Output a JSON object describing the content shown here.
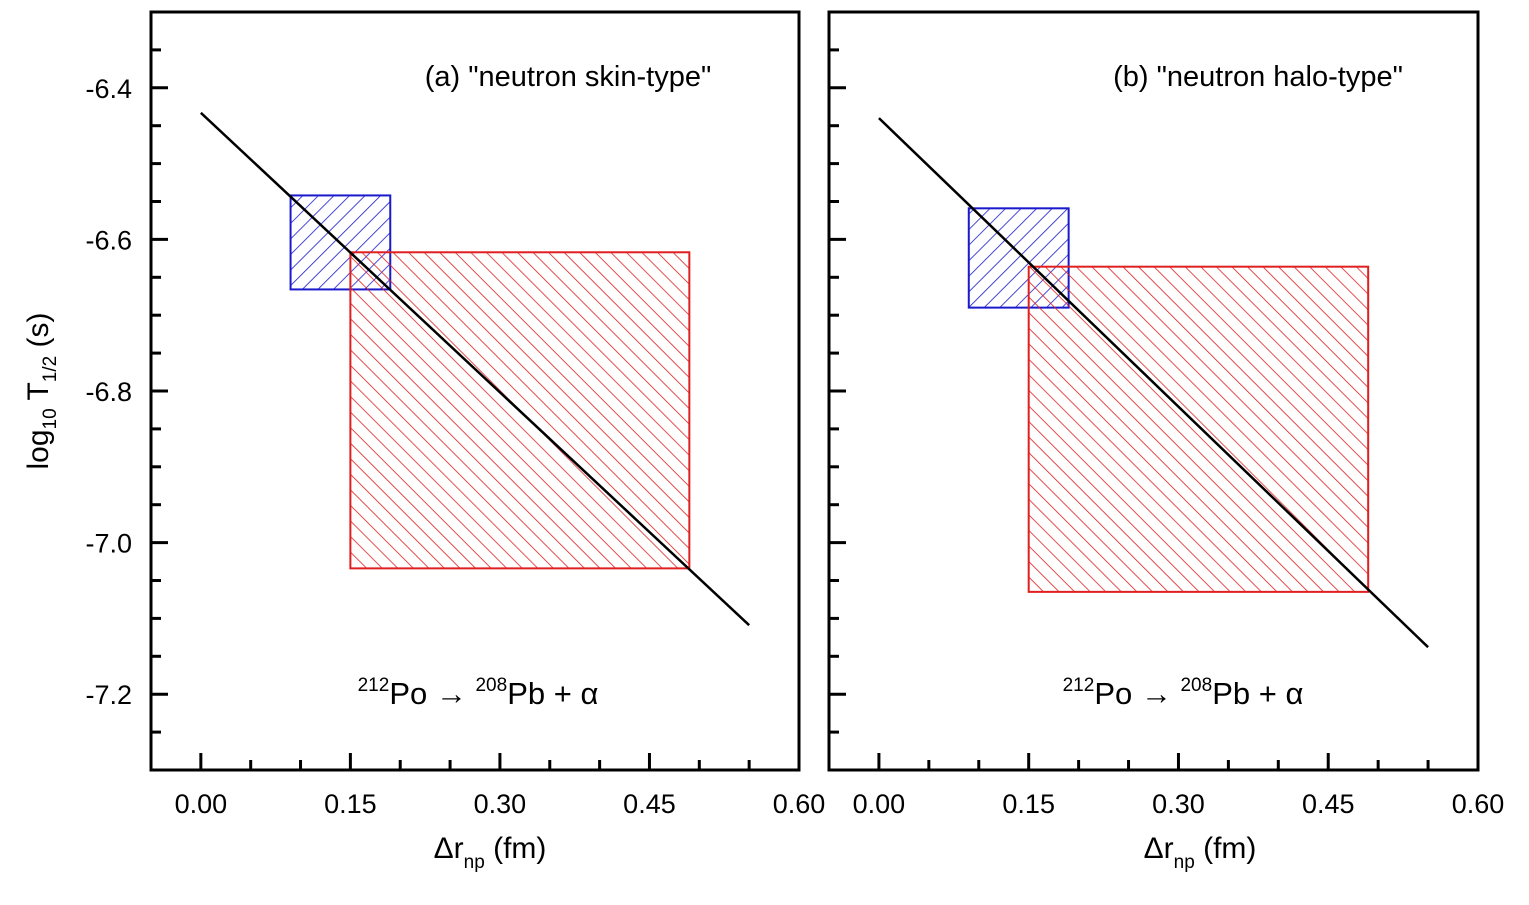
{
  "chart_data": [
    {
      "type": "line",
      "title": "(a) \"neutron skin-type\"",
      "annotation": {
        "parent_mass": "212",
        "parent": "Po",
        "arrow": "→",
        "daughter_mass": "208",
        "daughter": "Pb",
        "plus": "+",
        "particle": "α"
      },
      "xlabel": {
        "main": "Δr",
        "sub": "np",
        "unit": " (fm)"
      },
      "ylabel": {
        "main": "log",
        "sub1": "10",
        "mid": " T",
        "sub2": "1/2",
        "unit": " (s)"
      },
      "xlim": [
        -0.05,
        0.6
      ],
      "ylim": [
        -7.3,
        -6.3
      ],
      "xticks": [
        "0.00",
        "0.15",
        "0.30",
        "0.45",
        "0.60"
      ],
      "yticks": [
        "-6.4",
        "-6.6",
        "-6.8",
        "-7.0",
        "-7.2"
      ],
      "x_minor_step": 0.05,
      "y_minor_step": 0.05,
      "series": [
        {
          "x": [
            0.0,
            0.55
          ],
          "y": [
            -6.433,
            -7.109
          ],
          "color": "#000000"
        }
      ],
      "regions": [
        {
          "x": [
            0.09,
            0.19
          ],
          "y": [
            -6.542,
            -6.666
          ],
          "color": "#1a1acc",
          "hatch": "forward"
        },
        {
          "x": [
            0.15,
            0.49
          ],
          "y": [
            -6.617,
            -7.034
          ],
          "color": "#e02020",
          "hatch": "back"
        }
      ]
    },
    {
      "type": "line",
      "title": "(b) \"neutron halo-type\"",
      "annotation": {
        "parent_mass": "212",
        "parent": "Po",
        "arrow": "→",
        "daughter_mass": "208",
        "daughter": "Pb",
        "plus": "+",
        "particle": "α"
      },
      "xlabel": {
        "main": "Δr",
        "sub": "np",
        "unit": " (fm)"
      },
      "xlim": [
        -0.05,
        0.6
      ],
      "ylim": [
        -7.3,
        -6.3
      ],
      "xticks": [
        "0.00",
        "0.15",
        "0.30",
        "0.45",
        "0.60"
      ],
      "x_minor_step": 0.05,
      "y_minor_step": 0.05,
      "series": [
        {
          "x": [
            0.0,
            0.55
          ],
          "y": [
            -6.44,
            -7.138
          ],
          "color": "#000000"
        }
      ],
      "regions": [
        {
          "x": [
            0.09,
            0.19
          ],
          "y": [
            -6.559,
            -6.69
          ],
          "color": "#1a1acc",
          "hatch": "forward"
        },
        {
          "x": [
            0.15,
            0.49
          ],
          "y": [
            -6.636,
            -7.065
          ],
          "color": "#e02020",
          "hatch": "back"
        }
      ]
    }
  ]
}
